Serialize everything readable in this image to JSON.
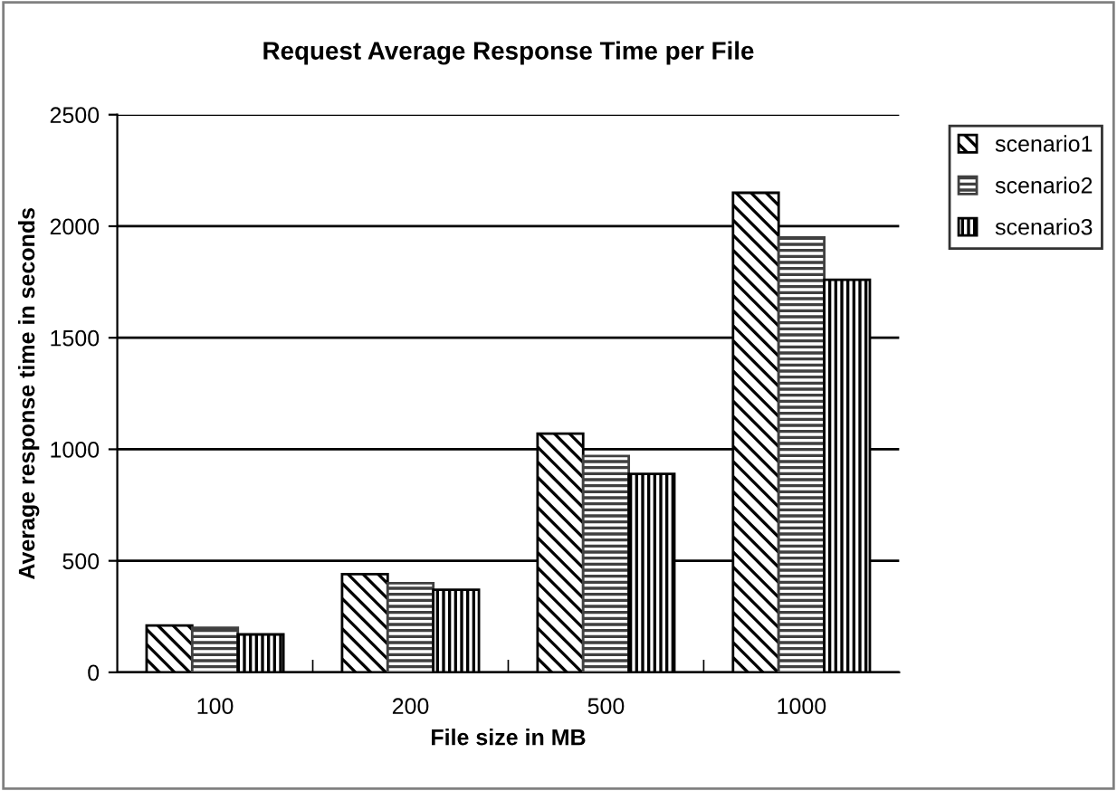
{
  "chart_data": {
    "type": "bar",
    "title": "Request Average Response Time per File",
    "xlabel": "File size in MB",
    "ylabel": "Average response time in seconds",
    "categories": [
      "100",
      "200",
      "500",
      "1000"
    ],
    "series": [
      {
        "name": "scenario1",
        "color": "#000000",
        "values": [
          210,
          440,
          1070,
          2150
        ]
      },
      {
        "name": "scenario2",
        "color": "#404040",
        "values": [
          200,
          400,
          970,
          1950
        ]
      },
      {
        "name": "scenario3",
        "color": "#000000",
        "values": [
          170,
          370,
          890,
          1760
        ]
      }
    ],
    "ylim": [
      0,
      2500
    ],
    "yticks": [
      0,
      500,
      1000,
      1500,
      2000,
      2500
    ],
    "grid": "y",
    "legend": "right"
  }
}
